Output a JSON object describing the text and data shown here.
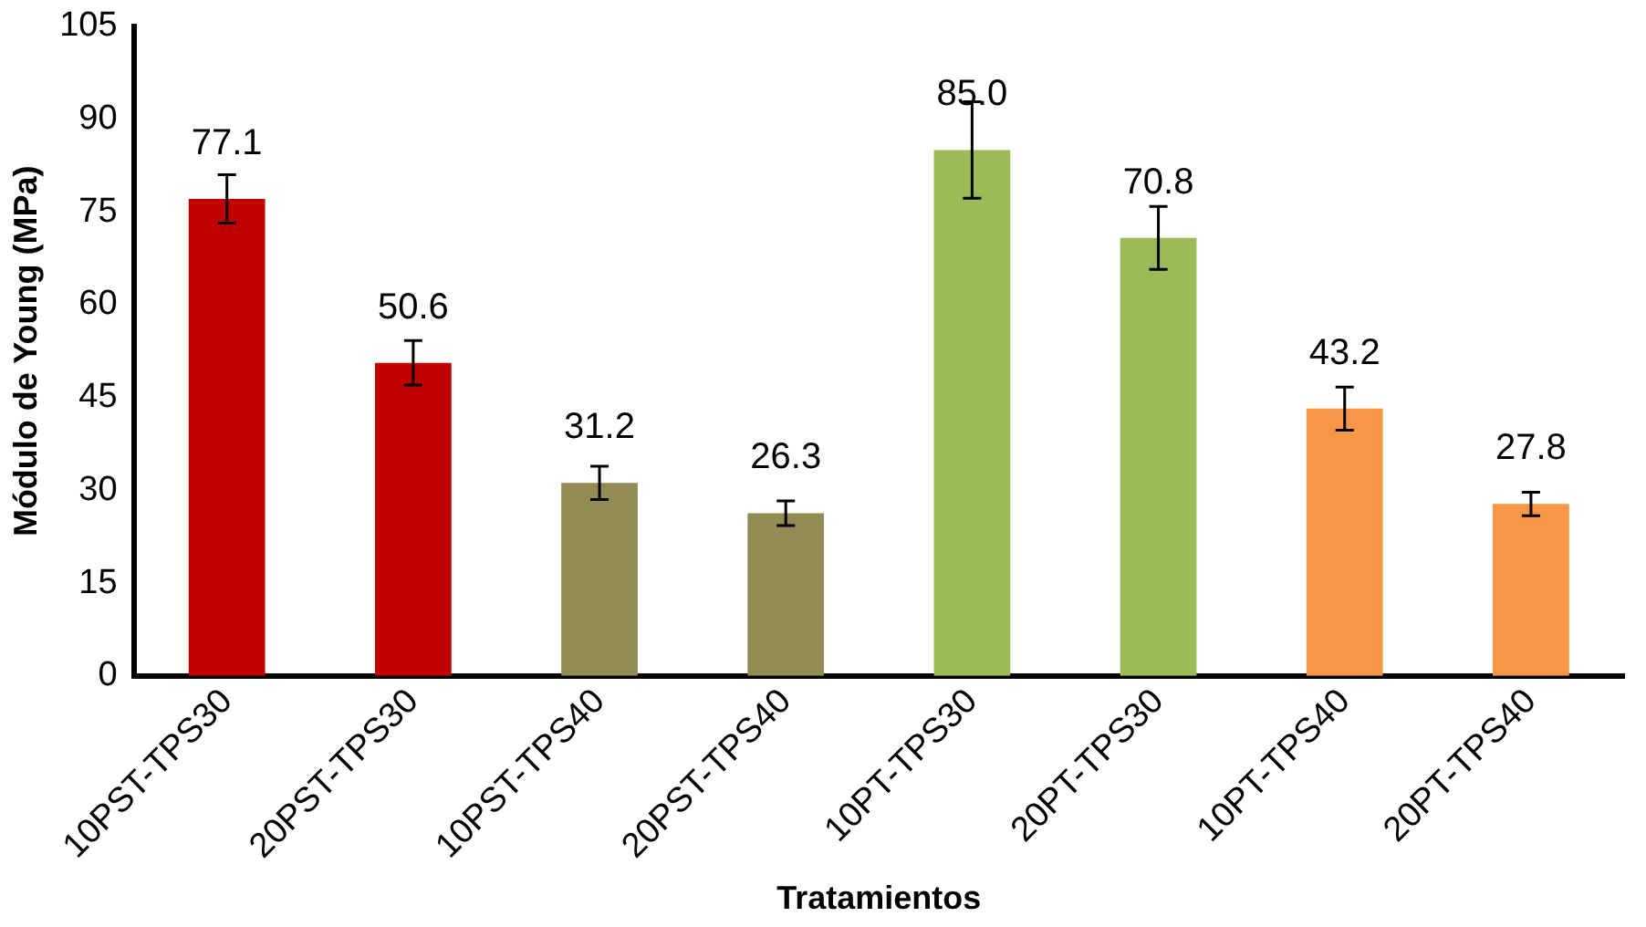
{
  "chart_data": {
    "type": "bar",
    "xlabel": "Tratamientos",
    "ylabel": "Módulo de Young (MPa)",
    "categories": [
      "10PST-TPS30",
      "20PST-TPS30",
      "10PST-TPS40",
      "20PST-TPS40",
      "10PT-TPS30",
      "20PT-TPS30",
      "10PT-TPS40",
      "20PT-TPS40"
    ],
    "values": [
      77.1,
      50.6,
      31.2,
      26.3,
      85.0,
      70.8,
      43.2,
      27.8
    ],
    "colors": [
      "#c00000",
      "#c00000",
      "#948a54",
      "#948a54",
      "#9bbb59",
      "#9bbb59",
      "#f79646",
      "#f79646"
    ],
    "errors": [
      3.9,
      3.6,
      2.7,
      2.0,
      7.8,
      5.1,
      3.5,
      1.9
    ],
    "value_labels": [
      "77.1",
      "50.6",
      "31.2",
      "26.3",
      "85.0",
      "70.8",
      "43.2",
      "27.8"
    ],
    "ylim": [
      0,
      105
    ],
    "yticks": [
      0,
      15,
      30,
      45,
      60,
      75,
      90,
      105
    ],
    "grid": false,
    "legend": false
  }
}
